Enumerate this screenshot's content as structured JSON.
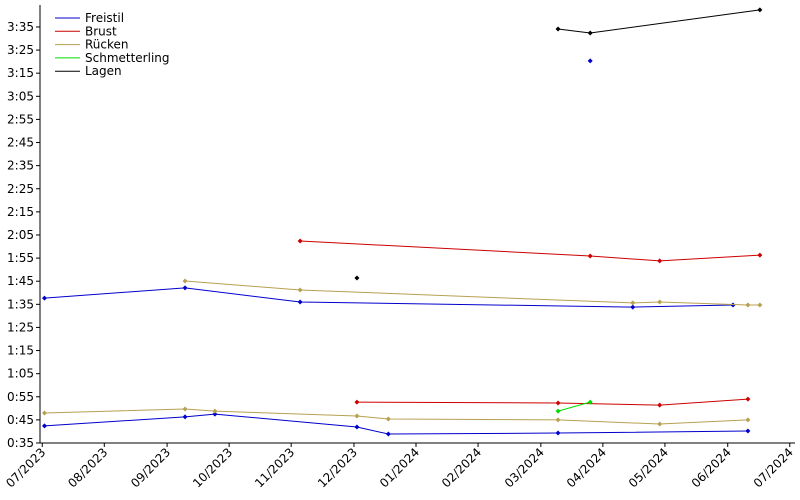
{
  "chart_data": {
    "type": "line",
    "xlim": [
      2023.497,
      2024.507
    ],
    "ylim": [
      35,
      224.5
    ],
    "xticks": [
      {
        "value": 2023.5,
        "label": "07/2023"
      },
      {
        "value": 2023.583,
        "label": "08/2023"
      },
      {
        "value": 2023.667,
        "label": "09/2023"
      },
      {
        "value": 2023.75,
        "label": "10/2023"
      },
      {
        "value": 2023.833,
        "label": "11/2023"
      },
      {
        "value": 2023.917,
        "label": "12/2023"
      },
      {
        "value": 2024.0,
        "label": "01/2024"
      },
      {
        "value": 2024.083,
        "label": "02/2024"
      },
      {
        "value": 2024.167,
        "label": "03/2024"
      },
      {
        "value": 2024.25,
        "label": "04/2024"
      },
      {
        "value": 2024.333,
        "label": "05/2024"
      },
      {
        "value": 2024.417,
        "label": "06/2024"
      },
      {
        "value": 2024.5,
        "label": "07/2024"
      }
    ],
    "yticks": [
      {
        "value": 35,
        "label": "0:35"
      },
      {
        "value": 45,
        "label": "0:45"
      },
      {
        "value": 55,
        "label": "0:55"
      },
      {
        "value": 65,
        "label": "1:05"
      },
      {
        "value": 75,
        "label": "1:15"
      },
      {
        "value": 85,
        "label": "1:25"
      },
      {
        "value": 95,
        "label": "1:35"
      },
      {
        "value": 105,
        "label": "1:45"
      },
      {
        "value": 115,
        "label": "1:55"
      },
      {
        "value": 125,
        "label": "2:05"
      },
      {
        "value": 135,
        "label": "2:15"
      },
      {
        "value": 145,
        "label": "2:25"
      },
      {
        "value": 155,
        "label": "2:35"
      },
      {
        "value": 165,
        "label": "2:45"
      },
      {
        "value": 175,
        "label": "2:55"
      },
      {
        "value": 185,
        "label": "3:05"
      },
      {
        "value": 195,
        "label": "3:15"
      },
      {
        "value": 205,
        "label": "3:25"
      },
      {
        "value": 215,
        "label": "3:35"
      }
    ],
    "grid": false,
    "legend": "upper-left",
    "series": [
      {
        "name": "Freistil",
        "color": "#0000cc",
        "x": [
          2023.503,
          2023.691,
          2023.845,
          2024.29,
          2024.424,
          null,
          2024.233,
          null,
          2023.503,
          2023.691,
          2023.731,
          2023.921,
          2023.963,
          2024.19,
          2024.444
        ],
        "values": [
          97.7,
          102.1,
          96.0,
          93.8,
          94.7,
          null,
          200.3,
          null,
          42.4,
          46.3,
          47.5,
          41.9,
          38.9,
          39.3,
          40.2
        ]
      },
      {
        "name": "Brust",
        "color": "#cc0000",
        "x": [
          2023.845,
          2024.233,
          2024.326,
          2024.46,
          null,
          2023.921,
          2024.19,
          2024.326,
          2024.444
        ],
        "values": [
          122.4,
          115.9,
          113.8,
          116.3,
          null,
          52.7,
          52.3,
          51.4,
          54.0
        ]
      },
      {
        "name": "Rücken",
        "color": "#b8a050",
        "x": [
          2023.691,
          2023.845,
          2024.29,
          2024.326,
          2024.444,
          2024.46,
          null,
          2023.503,
          2023.691,
          2023.731,
          2023.921,
          2023.963,
          2024.19,
          2024.326,
          2024.444
        ],
        "values": [
          105.1,
          101.2,
          95.6,
          96.0,
          94.7,
          94.7,
          null,
          48.0,
          49.7,
          48.8,
          46.7,
          45.4,
          45.0,
          43.2,
          45.0
        ]
      },
      {
        "name": "Schmetterling",
        "color": "#00dd00",
        "x": [
          2024.19,
          2024.233
        ],
        "values": [
          48.8,
          52.7
        ]
      },
      {
        "name": "Lagen",
        "color": "#000000",
        "x": [
          2024.19,
          2024.233,
          2024.46,
          null,
          2023.921
        ],
        "values": [
          214.1,
          212.4,
          222.4,
          null,
          106.4
        ]
      }
    ]
  }
}
